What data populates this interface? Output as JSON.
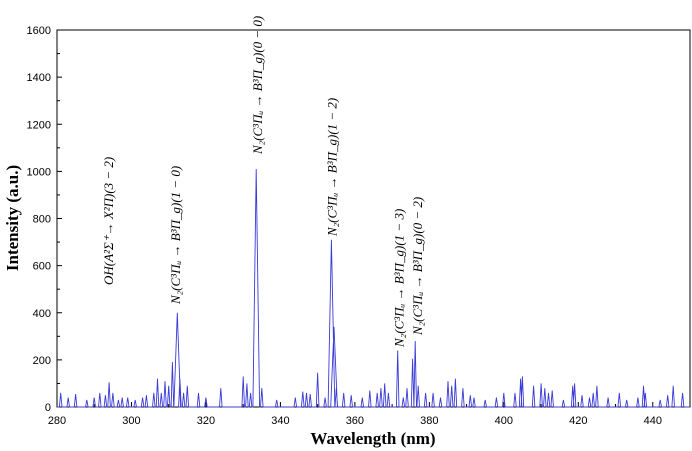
{
  "chart_data": {
    "type": "line",
    "xlabel": "Wavelength (nm)",
    "ylabel": "Intensity (a.u.)",
    "xlim": [
      280,
      450
    ],
    "ylim": [
      0,
      1600
    ],
    "x_ticks": [
      "280",
      "300",
      "320",
      "340",
      "360",
      "380",
      "400",
      "420",
      "440"
    ],
    "y_ticks": [
      "0",
      "200",
      "400",
      "600",
      "800",
      "1000",
      "1200",
      "1400",
      "1600"
    ],
    "grid": false,
    "line_color": "#3b3bd6",
    "peaks": [
      [
        281,
        60
      ],
      [
        283,
        40
      ],
      [
        285,
        55
      ],
      [
        288,
        30
      ],
      [
        290,
        40
      ],
      [
        291.5,
        60
      ],
      [
        293,
        50
      ],
      [
        294,
        105
      ],
      [
        295,
        60
      ],
      [
        296.5,
        30
      ],
      [
        297.5,
        40
      ],
      [
        299,
        40
      ],
      [
        301,
        30
      ],
      [
        303,
        40
      ],
      [
        304,
        50
      ],
      [
        306,
        60
      ],
      [
        307,
        120
      ],
      [
        308,
        60
      ],
      [
        309,
        110
      ],
      [
        310,
        90
      ],
      [
        311,
        190
      ],
      [
        312.3,
        400
      ],
      [
        313,
        120
      ],
      [
        314,
        60
      ],
      [
        315,
        90
      ],
      [
        318,
        60
      ],
      [
        320,
        40
      ],
      [
        324,
        80
      ],
      [
        330,
        130
      ],
      [
        331,
        100
      ],
      [
        332,
        60
      ],
      [
        333.5,
        1010
      ],
      [
        335,
        80
      ],
      [
        339,
        30
      ],
      [
        344,
        40
      ],
      [
        346,
        65
      ],
      [
        347,
        60
      ],
      [
        348,
        55
      ],
      [
        350,
        145
      ],
      [
        352,
        40
      ],
      [
        353.7,
        710
      ],
      [
        354.4,
        340
      ],
      [
        355,
        80
      ],
      [
        357,
        60
      ],
      [
        359,
        50
      ],
      [
        362,
        40
      ],
      [
        364,
        70
      ],
      [
        366,
        60
      ],
      [
        367,
        80
      ],
      [
        368,
        100
      ],
      [
        369,
        60
      ],
      [
        371.5,
        240
      ],
      [
        373,
        40
      ],
      [
        374,
        80
      ],
      [
        375.5,
        205
      ],
      [
        376.2,
        280
      ],
      [
        377,
        90
      ],
      [
        379,
        60
      ],
      [
        381,
        60
      ],
      [
        383,
        40
      ],
      [
        385,
        110
      ],
      [
        386,
        90
      ],
      [
        387,
        120
      ],
      [
        389,
        80
      ],
      [
        391,
        50
      ],
      [
        392,
        40
      ],
      [
        395,
        30
      ],
      [
        398,
        40
      ],
      [
        400,
        60
      ],
      [
        403,
        60
      ],
      [
        404.5,
        120
      ],
      [
        405,
        130
      ],
      [
        408,
        90
      ],
      [
        410,
        100
      ],
      [
        411,
        80
      ],
      [
        412,
        60
      ],
      [
        413,
        70
      ],
      [
        416,
        30
      ],
      [
        418.5,
        90
      ],
      [
        419,
        100
      ],
      [
        421,
        50
      ],
      [
        423,
        40
      ],
      [
        424,
        60
      ],
      [
        425,
        90
      ],
      [
        428,
        40
      ],
      [
        431,
        60
      ],
      [
        433,
        30
      ],
      [
        436,
        40
      ],
      [
        437.5,
        90
      ],
      [
        438,
        60
      ],
      [
        442,
        30
      ],
      [
        444,
        50
      ],
      [
        445.5,
        90
      ],
      [
        448,
        60
      ]
    ],
    "annotations": [
      {
        "text": "OH(A²Σ⁺→ X²Π)(3 − 2)",
        "x": 294
      },
      {
        "text": "N₂(C³Πᵤ → B³Π_g)(1 − 0)",
        "x": 312
      },
      {
        "text": "N₂(C³Πᵤ → B³Π_g)(0 − 0)",
        "x": 334
      },
      {
        "text": "N₂(C³Πᵤ → B³Π_g)(1 − 2)",
        "x": 354
      },
      {
        "text": "N₂(C³Πᵤ → B³Π_g)(1 − 3)",
        "x": 372
      },
      {
        "text": "N₂(C³Πᵤ → B³Π_g)(0 − 2)",
        "x": 377
      }
    ]
  }
}
